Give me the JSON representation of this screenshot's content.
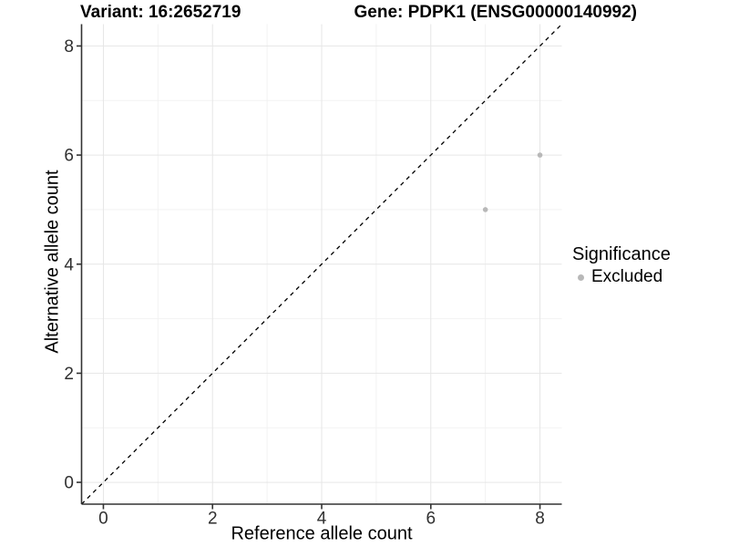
{
  "titles": {
    "variant": "Variant: 16:2652719",
    "gene": "Gene: PDPK1 (ENSG00000140992)"
  },
  "theme": {
    "background": "#ffffff",
    "grid_major_color": "#e6e6e6",
    "grid_minor_color": "#f2f2f2",
    "axis_line_color": "#333333",
    "tick_label_color": "#303030",
    "identity_line_color": "#000000",
    "excluded_point_color": "#b8b8b8"
  },
  "chart_data": {
    "type": "scatter",
    "title_left": "Variant: 16:2652719",
    "title_right": "Gene: PDPK1 (ENSG00000140992)",
    "xlabel": "Reference allele count",
    "ylabel": "Alternative allele count",
    "xlim": [
      -0.4,
      8.4
    ],
    "ylim": [
      -0.4,
      8.4
    ],
    "x_ticks": [
      0,
      2,
      4,
      6,
      8
    ],
    "y_ticks": [
      0,
      2,
      4,
      6,
      8
    ],
    "x_minor": [
      1,
      3,
      5,
      7
    ],
    "y_minor": [
      1,
      3,
      5,
      7
    ],
    "grid": true,
    "legend_position": "right",
    "identity_line": {
      "style": "dashed",
      "slope": 1,
      "intercept": 0,
      "color": "#000000"
    },
    "series": [
      {
        "name": "Excluded",
        "color": "#b8b8b8",
        "points": [
          {
            "x": 7,
            "y": 5
          },
          {
            "x": 8,
            "y": 6
          }
        ]
      }
    ],
    "legend": {
      "title": "Significance",
      "items": [
        {
          "label": "Excluded",
          "color": "#b8b8b8"
        }
      ]
    }
  }
}
